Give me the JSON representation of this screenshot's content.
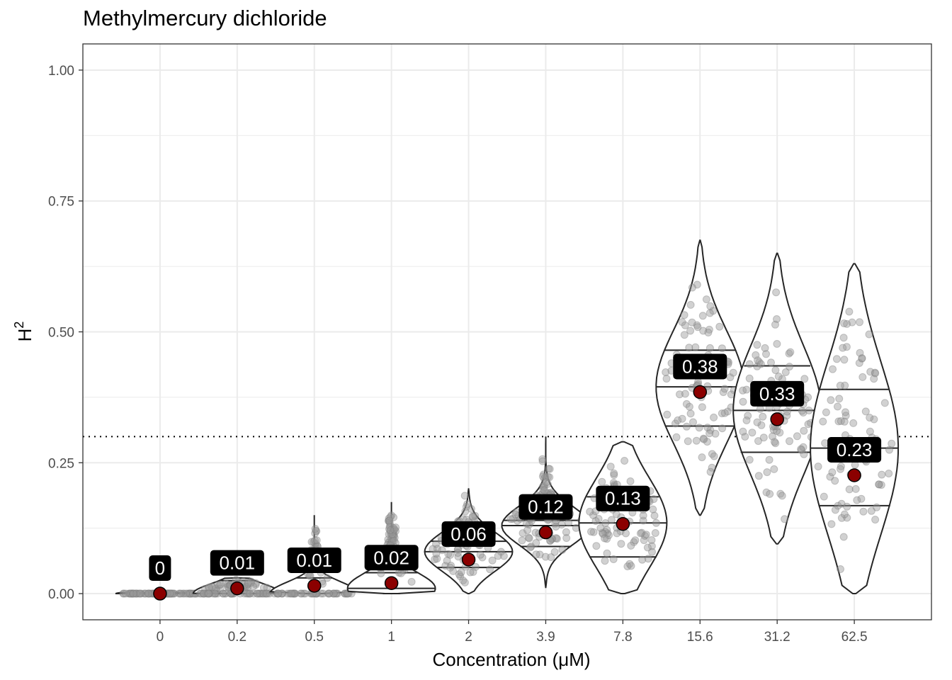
{
  "chart_data": {
    "type": "violin",
    "title": "Methylmercury dichloride",
    "xlabel": "Concentration (μM)",
    "ylabel": "H",
    "ylabel_superscript": "2",
    "ylim": [
      -0.05,
      1.05
    ],
    "yticks": [
      "0.00",
      "0.25",
      "0.50",
      "0.75",
      "1.00"
    ],
    "reference_line": 0.3,
    "grid": true,
    "categories": [
      "0",
      "0.2",
      "0.5",
      "1",
      "2",
      "3.9",
      "7.8",
      "15.6",
      "31.2",
      "62.5"
    ],
    "mean_labels": [
      "0",
      "0.01",
      "0.01",
      "0.02",
      "0.06",
      "0.12",
      "0.13",
      "0.38",
      "0.33",
      "0.23"
    ],
    "means": [
      0.0,
      0.01,
      0.015,
      0.02,
      0.065,
      0.117,
      0.133,
      0.385,
      0.333,
      0.226
    ],
    "max": [
      0.0,
      0.03,
      0.15,
      0.175,
      0.2,
      0.3,
      0.29,
      0.675,
      0.65,
      0.63
    ],
    "min": [
      0.0,
      0.0,
      0.0,
      0.0,
      0.0,
      0.012,
      0.0,
      0.15,
      0.095,
      0.0
    ],
    "quartiles": [
      [
        0.0,
        0.0,
        0.0
      ],
      [
        0.0,
        0.0,
        0.025
      ],
      [
        0.0,
        0.0,
        0.03
      ],
      [
        0.0,
        0.01,
        0.04
      ],
      [
        0.05,
        0.08,
        0.1
      ],
      [
        0.09,
        0.13,
        0.14
      ],
      [
        0.07,
        0.135,
        0.185
      ],
      [
        0.32,
        0.395,
        0.465
      ],
      [
        0.27,
        0.35,
        0.435
      ],
      [
        0.168,
        0.278,
        0.39
      ]
    ],
    "colors": {
      "mean_point": "#8b0000",
      "points": "#999999",
      "label_bg": "#000000",
      "label_text": "#ffffff",
      "grid": "#ebebeb",
      "outline": "#262626"
    }
  }
}
